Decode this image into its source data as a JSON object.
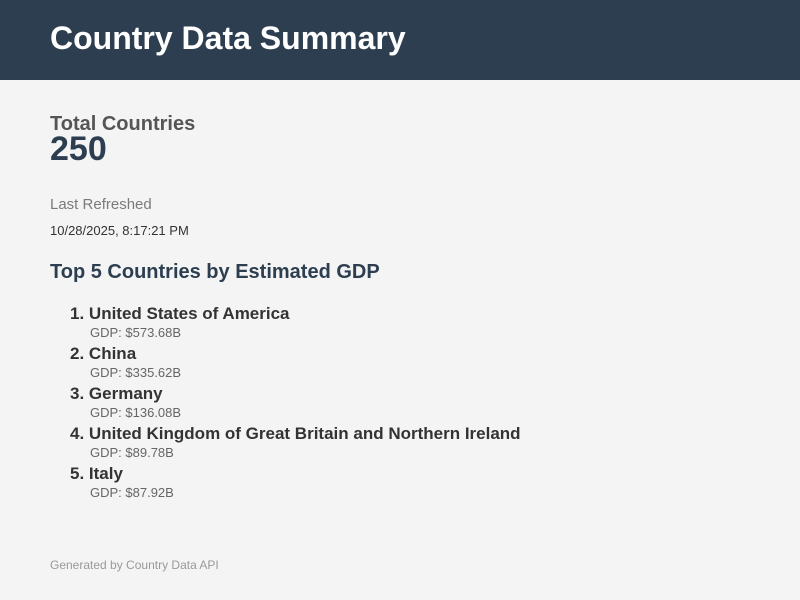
{
  "header": {
    "title": "Country Data Summary"
  },
  "summary": {
    "total_label": "Total Countries",
    "total_value": "250",
    "refresh_label": "Last Refreshed",
    "refresh_value": "10/28/2025, 8:17:21 PM"
  },
  "top_countries": {
    "title": "Top 5 Countries by Estimated GDP",
    "items": [
      {
        "rank": "1.",
        "name": "United States of America",
        "gdp": "GDP: $573.68B"
      },
      {
        "rank": "2.",
        "name": "China",
        "gdp": "GDP: $335.62B"
      },
      {
        "rank": "3.",
        "name": "Germany",
        "gdp": "GDP: $136.08B"
      },
      {
        "rank": "4.",
        "name": "United Kingdom of Great Britain and Northern Ireland",
        "gdp": "GDP: $89.78B"
      },
      {
        "rank": "5.",
        "name": "Italy",
        "gdp": "GDP: $87.92B"
      }
    ]
  },
  "footer": {
    "text": "Generated by Country Data API"
  },
  "colors": {
    "header_bg": "#2c3e50",
    "page_bg": "#f4f4f4",
    "accent": "#2c3e50"
  }
}
